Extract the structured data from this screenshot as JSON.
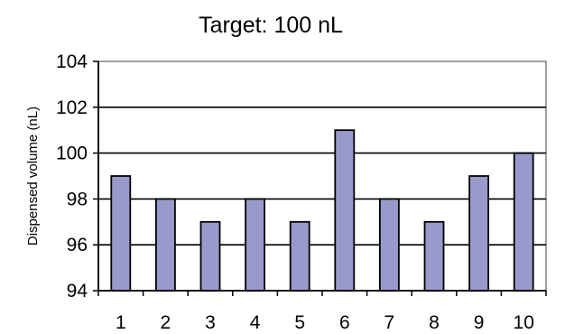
{
  "chart_data": {
    "type": "bar",
    "title": "Target: 100 nL",
    "xlabel": "",
    "ylabel": "Dispensed volume (nL)",
    "categories": [
      "1",
      "2",
      "3",
      "4",
      "5",
      "6",
      "7",
      "8",
      "9",
      "10"
    ],
    "values": [
      99,
      98,
      97,
      98,
      97,
      101,
      98,
      97,
      99,
      100
    ],
    "ylim": [
      94,
      104
    ],
    "yticks": [
      "94",
      "96",
      "98",
      "100",
      "102",
      "104"
    ],
    "grid": true,
    "legend": "none",
    "colors": {
      "bar_fill": "#9999cc",
      "bar_stroke": "#000000",
      "plot_background": "#ffffff",
      "gridline": "#000000"
    }
  }
}
